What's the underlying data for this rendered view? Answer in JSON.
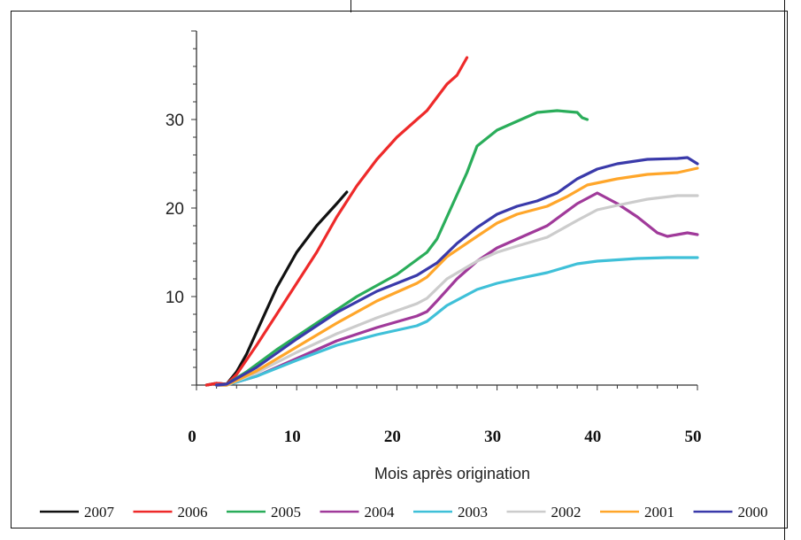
{
  "chart_data": {
    "type": "line",
    "xlabel": "Mois après origination",
    "ylabel": "",
    "xlim": [
      0,
      50
    ],
    "ylim": [
      0,
      40
    ],
    "x_ticks": [
      0,
      10,
      20,
      30,
      40,
      50
    ],
    "y_ticks": [
      10,
      20,
      30
    ],
    "grid": false,
    "legend_position": "bottom",
    "series": [
      {
        "name": "2007",
        "color": "#111111",
        "points": [
          [
            1,
            0
          ],
          [
            2,
            0.2
          ],
          [
            3,
            0.1
          ],
          [
            4,
            1.5
          ],
          [
            5,
            3.5
          ],
          [
            6,
            6
          ],
          [
            7,
            8.5
          ],
          [
            8,
            11
          ],
          [
            9,
            13
          ],
          [
            10,
            15
          ],
          [
            12,
            18
          ],
          [
            14,
            20.5
          ],
          [
            15,
            21.8
          ]
        ]
      },
      {
        "name": "2006",
        "color": "#ee2a2a",
        "points": [
          [
            1,
            0
          ],
          [
            2,
            0.2
          ],
          [
            3,
            0.1
          ],
          [
            4,
            1.2
          ],
          [
            6,
            4.5
          ],
          [
            8,
            8
          ],
          [
            10,
            11.5
          ],
          [
            12,
            15
          ],
          [
            14,
            19
          ],
          [
            16,
            22.5
          ],
          [
            18,
            25.5
          ],
          [
            20,
            28
          ],
          [
            22,
            30
          ],
          [
            23,
            31
          ],
          [
            24,
            32.5
          ],
          [
            25,
            34
          ],
          [
            26,
            35
          ],
          [
            27,
            37
          ]
        ]
      },
      {
        "name": "2005",
        "color": "#2aad5a",
        "points": [
          [
            2,
            0
          ],
          [
            3,
            0.1
          ],
          [
            5,
            1.5
          ],
          [
            8,
            4
          ],
          [
            12,
            7
          ],
          [
            16,
            10
          ],
          [
            20,
            12.5
          ],
          [
            23,
            15
          ],
          [
            24,
            16.5
          ],
          [
            25,
            19
          ],
          [
            26,
            21.5
          ],
          [
            27,
            24
          ],
          [
            28,
            27
          ],
          [
            30,
            28.8
          ],
          [
            32,
            29.8
          ],
          [
            34,
            30.8
          ],
          [
            36,
            31
          ],
          [
            38,
            30.8
          ],
          [
            38.5,
            30.2
          ],
          [
            39,
            30
          ]
        ]
      },
      {
        "name": "2004",
        "color": "#a03a9a",
        "points": [
          [
            2,
            0
          ],
          [
            3,
            0
          ],
          [
            6,
            1
          ],
          [
            10,
            3
          ],
          [
            14,
            5
          ],
          [
            18,
            6.5
          ],
          [
            22,
            7.8
          ],
          [
            23,
            8.3
          ],
          [
            24,
            9.5
          ],
          [
            26,
            12
          ],
          [
            28,
            14
          ],
          [
            30,
            15.5
          ],
          [
            32,
            16.5
          ],
          [
            35,
            18
          ],
          [
            38,
            20.5
          ],
          [
            40,
            21.7
          ],
          [
            42,
            20.5
          ],
          [
            44,
            19
          ],
          [
            46,
            17.2
          ],
          [
            47,
            16.8
          ],
          [
            48,
            17
          ],
          [
            49,
            17.2
          ],
          [
            50,
            17
          ]
        ]
      },
      {
        "name": "2003",
        "color": "#3fc0d8",
        "points": [
          [
            2,
            0
          ],
          [
            3,
            0
          ],
          [
            6,
            1
          ],
          [
            10,
            2.8
          ],
          [
            14,
            4.5
          ],
          [
            18,
            5.7
          ],
          [
            22,
            6.7
          ],
          [
            23,
            7.2
          ],
          [
            25,
            9
          ],
          [
            28,
            10.8
          ],
          [
            30,
            11.5
          ],
          [
            32,
            12
          ],
          [
            35,
            12.7
          ],
          [
            38,
            13.7
          ],
          [
            40,
            14
          ],
          [
            44,
            14.3
          ],
          [
            47,
            14.4
          ],
          [
            50,
            14.4
          ]
        ]
      },
      {
        "name": "2002",
        "color": "#cccccc",
        "points": [
          [
            2,
            0
          ],
          [
            3,
            0
          ],
          [
            6,
            1.4
          ],
          [
            10,
            3.7
          ],
          [
            14,
            5.8
          ],
          [
            18,
            7.6
          ],
          [
            22,
            9.2
          ],
          [
            23,
            9.8
          ],
          [
            25,
            12
          ],
          [
            28,
            14
          ],
          [
            30,
            15
          ],
          [
            32,
            15.7
          ],
          [
            35,
            16.7
          ],
          [
            38,
            18.6
          ],
          [
            40,
            19.8
          ],
          [
            42,
            20.3
          ],
          [
            45,
            21
          ],
          [
            48,
            21.4
          ],
          [
            50,
            21.4
          ]
        ]
      },
      {
        "name": "2001",
        "color": "#ffa62a",
        "points": [
          [
            2,
            0
          ],
          [
            3,
            0
          ],
          [
            6,
            1.6
          ],
          [
            10,
            4.3
          ],
          [
            14,
            7
          ],
          [
            18,
            9.5
          ],
          [
            22,
            11.5
          ],
          [
            23,
            12.2
          ],
          [
            25,
            14.5
          ],
          [
            28,
            16.8
          ],
          [
            30,
            18.3
          ],
          [
            32,
            19.3
          ],
          [
            35,
            20.2
          ],
          [
            37,
            21.3
          ],
          [
            39,
            22.6
          ],
          [
            42,
            23.3
          ],
          [
            45,
            23.8
          ],
          [
            48,
            24
          ],
          [
            50,
            24.5
          ]
        ]
      },
      {
        "name": "2000",
        "color": "#3a3aaa",
        "points": [
          [
            2,
            0
          ],
          [
            3,
            0.1
          ],
          [
            6,
            2
          ],
          [
            10,
            5.2
          ],
          [
            14,
            8.2
          ],
          [
            18,
            10.6
          ],
          [
            22,
            12.4
          ],
          [
            24,
            13.8
          ],
          [
            26,
            16
          ],
          [
            28,
            17.8
          ],
          [
            30,
            19.3
          ],
          [
            32,
            20.2
          ],
          [
            34,
            20.8
          ],
          [
            36,
            21.7
          ],
          [
            38,
            23.3
          ],
          [
            40,
            24.4
          ],
          [
            42,
            25
          ],
          [
            45,
            25.5
          ],
          [
            48,
            25.6
          ],
          [
            49,
            25.7
          ],
          [
            50,
            25
          ]
        ]
      }
    ]
  }
}
